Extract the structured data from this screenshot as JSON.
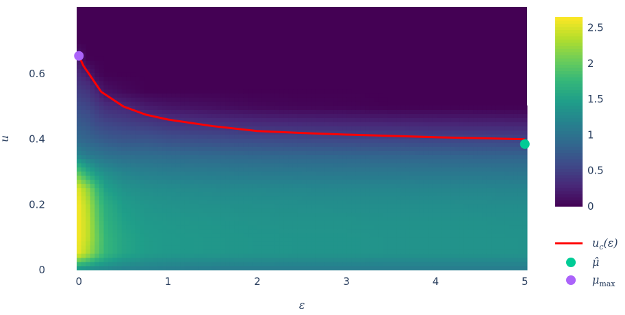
{
  "chart_data": {
    "type": "heatmap",
    "xlabel": "ε",
    "ylabel": "u",
    "xlim": [
      -0.025,
      5.025
    ],
    "ylim": [
      0,
      0.805
    ],
    "xticks": [
      "0",
      "1",
      "2",
      "3",
      "4",
      "5"
    ],
    "yticks": [
      "0",
      "0.2",
      "0.4",
      "0.6"
    ],
    "colorscale": "Viridis",
    "zlim": [
      0,
      2.65
    ],
    "colorbar_ticks": [
      "0",
      "0.5",
      "1",
      "1.5",
      "2",
      "2.5"
    ],
    "grid": false,
    "legend_placement": "bottom-right",
    "x": [
      0,
      0.1,
      0.2,
      0.3,
      0.5,
      0.75,
      1,
      1.5,
      2,
      2.5,
      3,
      3.5,
      4,
      4.5,
      5
    ],
    "y": [
      0,
      0.05,
      0.1,
      0.15,
      0.2,
      0.25,
      0.3,
      0.35,
      0.4,
      0.45,
      0.5,
      0.55,
      0.6,
      0.65,
      0.7,
      0.75,
      0.8
    ],
    "z_by_column": [
      [
        1.3,
        2.55,
        2.6,
        2.6,
        2.6,
        2.5,
        1.9,
        1.2,
        0.9,
        0.75,
        0.6,
        0.45,
        0.3,
        0.15,
        0,
        0,
        0
      ],
      [
        1.25,
        2.3,
        2.4,
        2.4,
        2.35,
        2.2,
        1.6,
        1.1,
        0.85,
        0.7,
        0.55,
        0.4,
        0.2,
        0,
        0,
        0,
        0
      ],
      [
        1.2,
        2.0,
        2.05,
        2.0,
        1.95,
        1.8,
        1.4,
        1.05,
        0.8,
        0.6,
        0.45,
        0.25,
        0.05,
        0,
        0,
        0,
        0
      ],
      [
        1.2,
        1.75,
        1.75,
        1.7,
        1.65,
        1.5,
        1.3,
        1.0,
        0.75,
        0.55,
        0.35,
        0.12,
        0,
        0,
        0,
        0,
        0
      ],
      [
        1.15,
        1.55,
        1.55,
        1.5,
        1.45,
        1.35,
        1.2,
        0.95,
        0.7,
        0.5,
        0.3,
        0.05,
        0,
        0,
        0,
        0,
        0
      ],
      [
        1.15,
        1.45,
        1.45,
        1.42,
        1.38,
        1.3,
        1.15,
        0.95,
        0.7,
        0.45,
        0.2,
        0,
        0,
        0,
        0,
        0,
        0
      ],
      [
        1.12,
        1.42,
        1.42,
        1.4,
        1.35,
        1.28,
        1.12,
        0.92,
        0.65,
        0.4,
        0.15,
        0,
        0,
        0,
        0,
        0,
        0
      ],
      [
        1.1,
        1.4,
        1.4,
        1.38,
        1.33,
        1.25,
        1.1,
        0.9,
        0.62,
        0.35,
        0.1,
        0,
        0,
        0,
        0,
        0,
        0
      ],
      [
        1.1,
        1.38,
        1.38,
        1.36,
        1.32,
        1.24,
        1.08,
        0.88,
        0.6,
        0.32,
        0.05,
        0,
        0,
        0,
        0,
        0,
        0
      ],
      [
        1.1,
        1.37,
        1.37,
        1.35,
        1.31,
        1.23,
        1.07,
        0.87,
        0.58,
        0.3,
        0.03,
        0,
        0,
        0,
        0,
        0,
        0
      ],
      [
        1.1,
        1.37,
        1.37,
        1.35,
        1.3,
        1.22,
        1.06,
        0.86,
        0.57,
        0.28,
        0.02,
        0,
        0,
        0,
        0,
        0,
        0
      ],
      [
        1.1,
        1.36,
        1.36,
        1.34,
        1.3,
        1.22,
        1.06,
        0.85,
        0.56,
        0.27,
        0,
        0,
        0,
        0,
        0,
        0,
        0
      ],
      [
        1.1,
        1.36,
        1.36,
        1.34,
        1.3,
        1.21,
        1.05,
        0.85,
        0.55,
        0.26,
        0,
        0,
        0,
        0,
        0,
        0,
        0
      ],
      [
        1.1,
        1.36,
        1.36,
        1.34,
        1.29,
        1.21,
        1.05,
        0.84,
        0.55,
        0.25,
        0,
        0,
        0,
        0,
        0,
        0,
        0
      ],
      [
        1.1,
        1.35,
        1.35,
        1.33,
        1.29,
        1.2,
        1.04,
        0.84,
        0.54,
        0.24,
        0,
        0,
        0,
        0,
        0,
        0,
        0
      ]
    ],
    "series": [
      {
        "name": "u_c(ε)",
        "type": "line",
        "color": "#ff0000",
        "x": [
          0,
          0.05,
          0.1,
          0.25,
          0.5,
          0.75,
          1,
          1.5,
          2,
          2.5,
          3,
          3.5,
          4,
          4.5,
          5
        ],
        "y": [
          0.655,
          0.625,
          0.605,
          0.545,
          0.5,
          0.475,
          0.46,
          0.44,
          0.425,
          0.419,
          0.414,
          0.41,
          0.406,
          0.403,
          0.4
        ]
      },
      {
        "name": "μ̂",
        "type": "scatter",
        "color": "#00cc96",
        "x": [
          5
        ],
        "y": [
          0.385
        ]
      },
      {
        "name": "μ_max",
        "type": "scatter",
        "color": "#ab63fa",
        "x": [
          0
        ],
        "y": [
          0.655
        ]
      }
    ],
    "legend": [
      {
        "label": "u",
        "sub": "c",
        "suffix": "(ε)"
      },
      {
        "label": "μ̂",
        "sub": "",
        "suffix": ""
      },
      {
        "label": "μ",
        "sub": "max",
        "suffix": ""
      }
    ]
  }
}
